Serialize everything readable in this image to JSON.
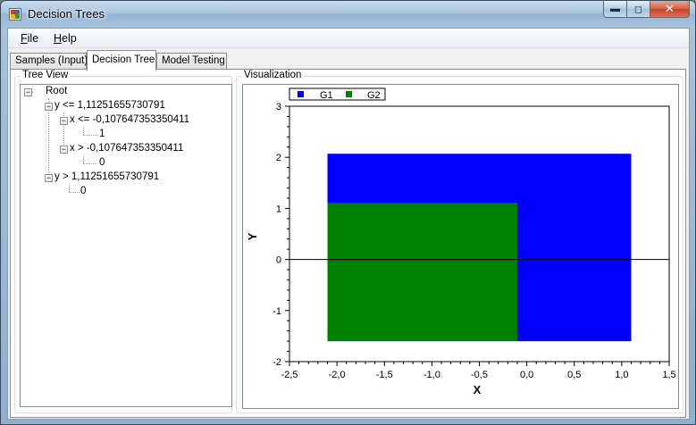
{
  "window": {
    "title": "Decision Trees"
  },
  "menu": [
    {
      "label": "File",
      "u": "F",
      "rest": "ile"
    },
    {
      "label": "Help",
      "u": "H",
      "rest": "elp"
    }
  ],
  "tabs": [
    "Samples (Input)",
    "Decision Tree",
    "Model Testing"
  ],
  "active_tab": "Decision Tree",
  "tree_view": {
    "title": "Tree View",
    "nodes": [
      "Root",
      "y <= 1,11251655730791",
      "x <= -0,107647353350411",
      "1",
      "x > -0,107647353350411",
      "0",
      "y > 1,11251655730791",
      "0"
    ]
  },
  "visualization": {
    "title": "Visualization"
  },
  "colors": {
    "g1": "#0000ff",
    "g2": "#008000"
  },
  "chart_data": {
    "type": "area",
    "xlabel": "X",
    "ylabel": "Y",
    "xlim": [
      -2.5,
      1.5
    ],
    "ylim": [
      -2,
      3
    ],
    "x_ticks": [
      "-2,5",
      "-2,0",
      "-1,5",
      "-1,0",
      "-0,5",
      "0,0",
      "0,5",
      "1,0",
      "1,5"
    ],
    "y_ticks": [
      "3",
      "2",
      "1",
      "0",
      "-1",
      "-2"
    ],
    "legend": [
      "G1",
      "G2"
    ],
    "legend_position": "top-left",
    "series": [
      {
        "name": "G1",
        "x_range": [
          -2.1,
          1.1
        ],
        "y_range": [
          -1.6,
          2.07
        ]
      },
      {
        "name": "G2",
        "x_range": [
          -2.1,
          -0.1
        ],
        "y_range": [
          -1.6,
          1.11
        ]
      }
    ],
    "zero_line_y": 0
  }
}
